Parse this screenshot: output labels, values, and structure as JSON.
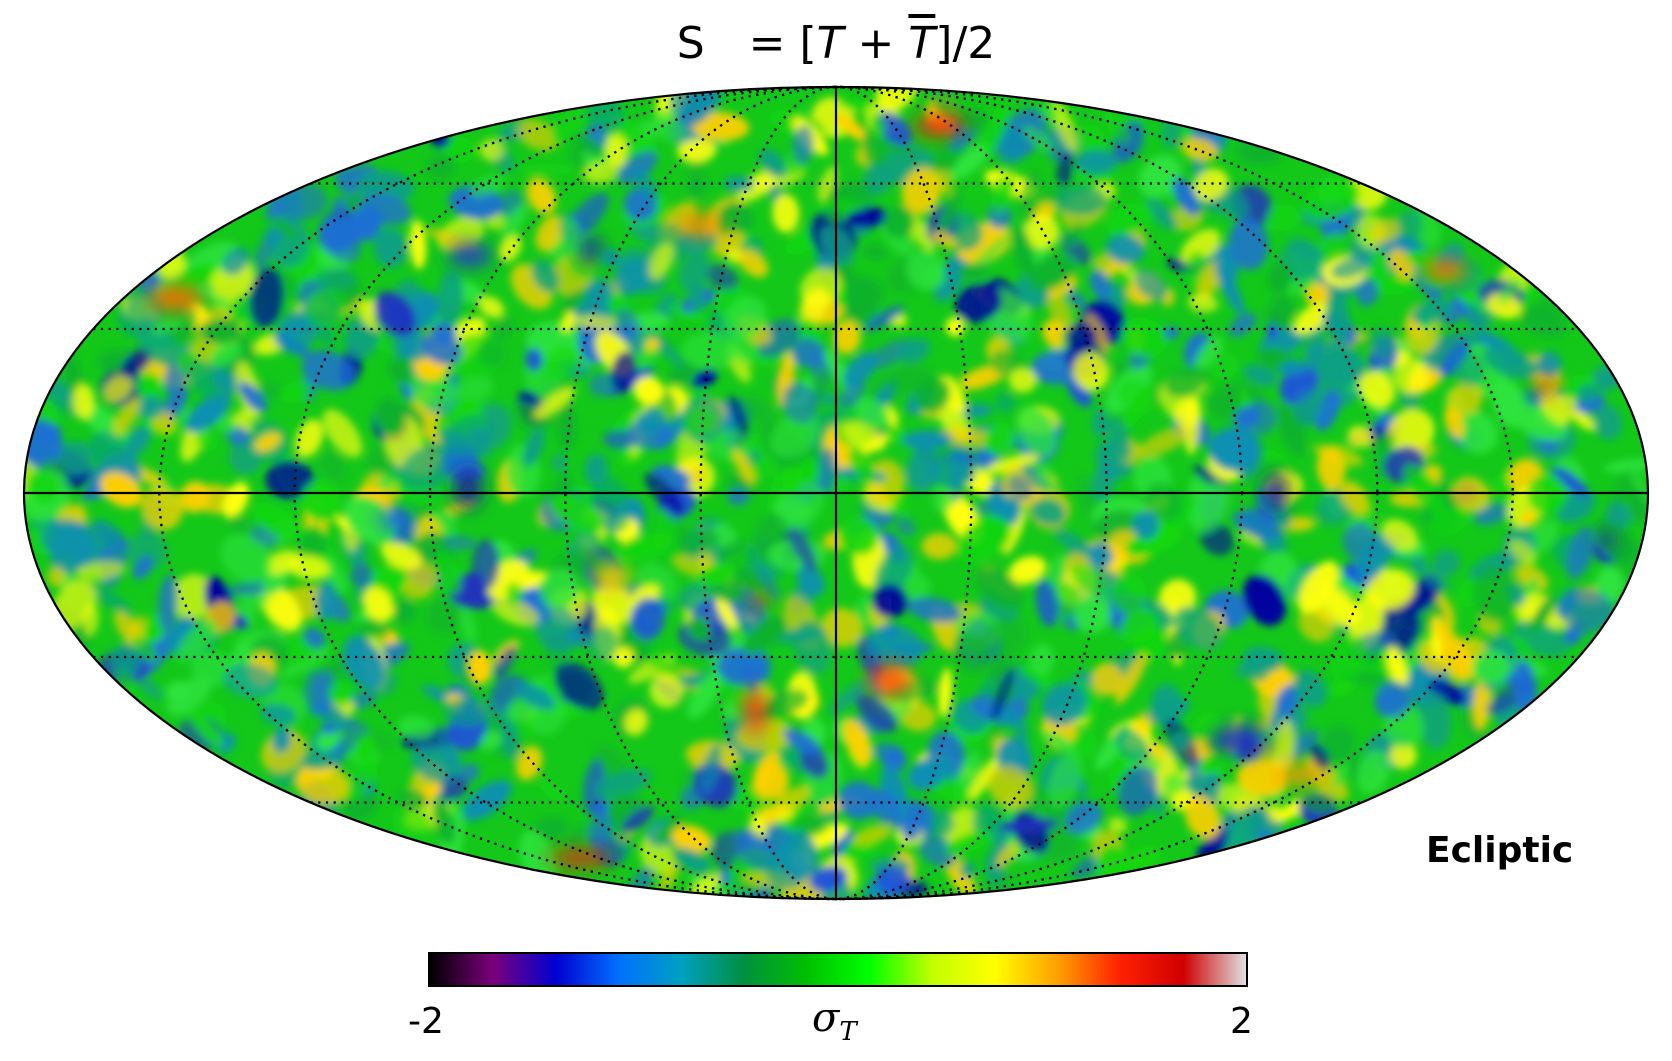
{
  "title": {
    "prefix": "S",
    "equation_open": "= [",
    "T1": "T",
    "plus": " + ",
    "T2": "T",
    "equation_close": "]/2"
  },
  "coordinate_system": "Ecliptic",
  "colorbar": {
    "min_label": "-2",
    "max_label": "2",
    "label_symbol": "σ",
    "label_sub": "T",
    "range": [
      -2,
      2
    ],
    "colormap": [
      "#000000",
      "#7a007a",
      "#0000d0",
      "#0070ff",
      "#00a0c0",
      "#009040",
      "#00c000",
      "#00ff00",
      "#c0ff00",
      "#ffff00",
      "#ffa000",
      "#ff2000",
      "#d00000",
      "#e0e0e0"
    ]
  },
  "map": {
    "projection": "mollweide",
    "graticule": "dotted",
    "background_colors": [
      "#0a9f85",
      "#0fb12d",
      "#13d70f",
      "#2ee33d",
      "#0c8fb3",
      "#1f6fd6"
    ],
    "hot_colors": [
      "#ffff10",
      "#ffd000",
      "#ff7a00",
      "#ee1a10"
    ],
    "cold_colors": [
      "#1d50e0",
      "#2030c0",
      "#0000a0"
    ]
  }
}
